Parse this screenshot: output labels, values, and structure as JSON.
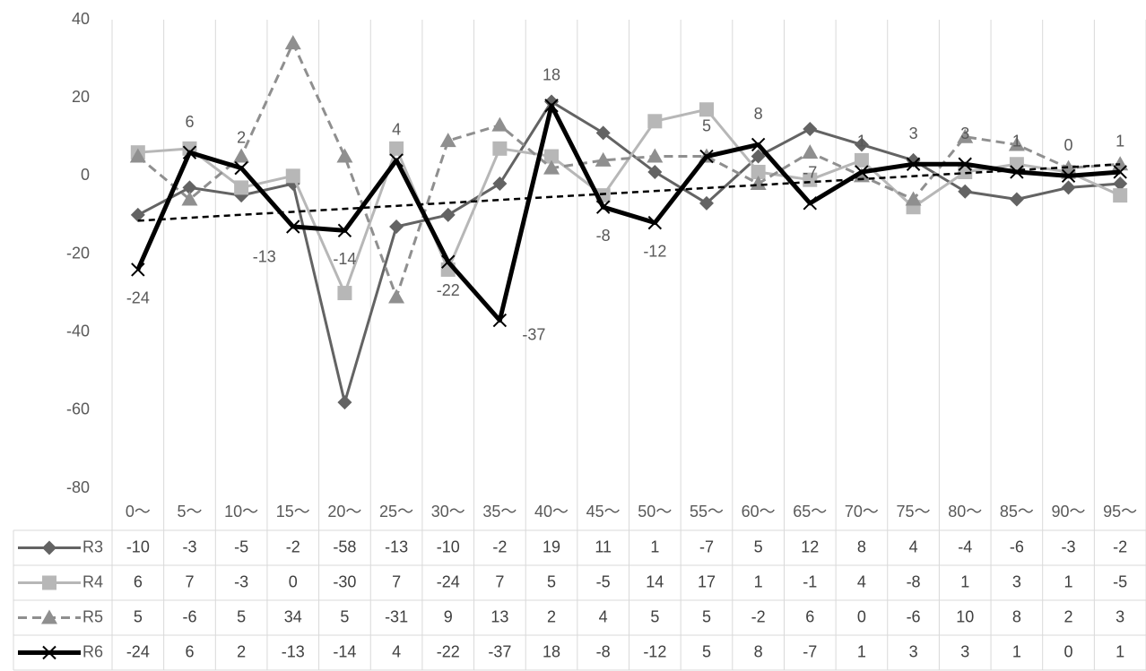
{
  "chart_data": {
    "type": "line",
    "categories": [
      "0〜",
      "5〜",
      "10〜",
      "15〜",
      "20〜",
      "25〜",
      "30〜",
      "35〜",
      "40〜",
      "45〜",
      "50〜",
      "55〜",
      "60〜",
      "65〜",
      "70〜",
      "75〜",
      "80〜",
      "85〜",
      "90〜",
      "95〜"
    ],
    "series": [
      {
        "name": "R3",
        "color": "#636363",
        "marker": "diamond",
        "dashed": false,
        "values": [
          -10,
          -3,
          -5,
          -2,
          -58,
          -13,
          -10,
          -2,
          19,
          11,
          1,
          -7,
          5,
          12,
          8,
          4,
          -4,
          -6,
          -3,
          -2
        ]
      },
      {
        "name": "R4",
        "color": "#b7b7b7",
        "marker": "square",
        "dashed": false,
        "values": [
          6,
          7,
          -3,
          0,
          -30,
          7,
          -24,
          7,
          5,
          -5,
          14,
          17,
          1,
          -1,
          4,
          -8,
          1,
          3,
          1,
          -5
        ]
      },
      {
        "name": "R5",
        "color": "#8f8f8f",
        "marker": "triangle",
        "dashed": true,
        "values": [
          5,
          -6,
          5,
          34,
          5,
          -31,
          9,
          13,
          2,
          4,
          5,
          5,
          -2,
          6,
          0,
          -6,
          10,
          8,
          2,
          3
        ]
      },
      {
        "name": "R6",
        "color": "#000000",
        "marker": "x",
        "dashed": false,
        "values": [
          -24,
          6,
          2,
          -13,
          -14,
          4,
          -22,
          -37,
          18,
          -8,
          -12,
          5,
          8,
          -7,
          1,
          3,
          3,
          1,
          0,
          1
        ]
      }
    ],
    "data_labels_series": "R6",
    "trendline_series": "R6",
    "data_table": true,
    "ylim": [
      -80,
      40
    ],
    "yticks": [
      -80,
      -60,
      -40,
      -20,
      0,
      20,
      40
    ],
    "grid": false
  }
}
